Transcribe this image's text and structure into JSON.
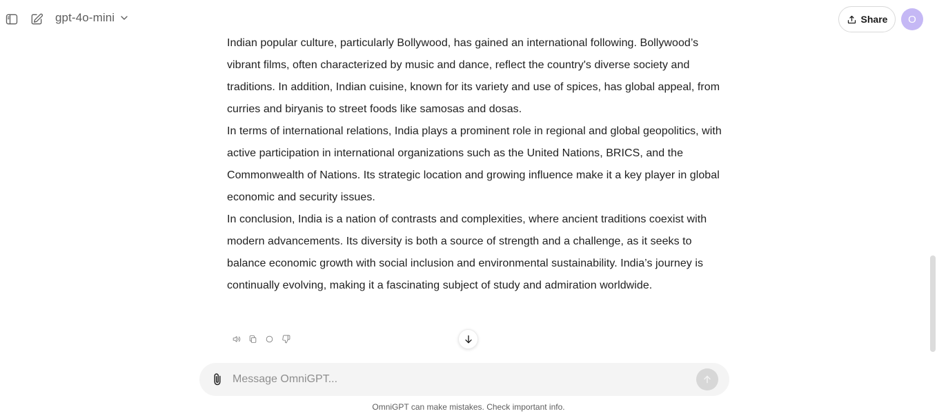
{
  "header": {
    "model_name": "gpt-4o-mini",
    "share_label": "Share",
    "avatar_initial": "O",
    "avatar_color": "#c5b8f5"
  },
  "message": {
    "paragraphs": [
      "Indian popular culture, particularly Bollywood, has gained an international following. Bollywood’s vibrant films, often characterized by music and dance, reflect the country's diverse society and traditions. In addition, Indian cuisine, known for its variety and use of spices, has global appeal, from curries and biryanis to street foods like samosas and dosas.",
      "In terms of international relations, India plays a prominent role in regional and global geopolitics, with active participation in international organizations such as the United Nations, BRICS, and the Commonwealth of Nations. Its strategic location and growing influence make it a key player in global economic and security issues.",
      "In conclusion, India is a nation of contrasts and complexities, where ancient traditions coexist with modern advancements. Its diversity is both a source of strength and a challenge, as it seeks to balance economic growth with social inclusion and environmental sustainability. India’s journey is continually evolving, making it a fascinating subject of study and admiration worldwide."
    ],
    "action_icons": [
      "speaker-icon",
      "copy-icon",
      "regenerate-icon",
      "thumbs-down-icon"
    ]
  },
  "composer": {
    "placeholder": "Message OmniGPT...",
    "value": ""
  },
  "footer": {
    "disclaimer": "OmniGPT can make mistakes. Check important info."
  }
}
